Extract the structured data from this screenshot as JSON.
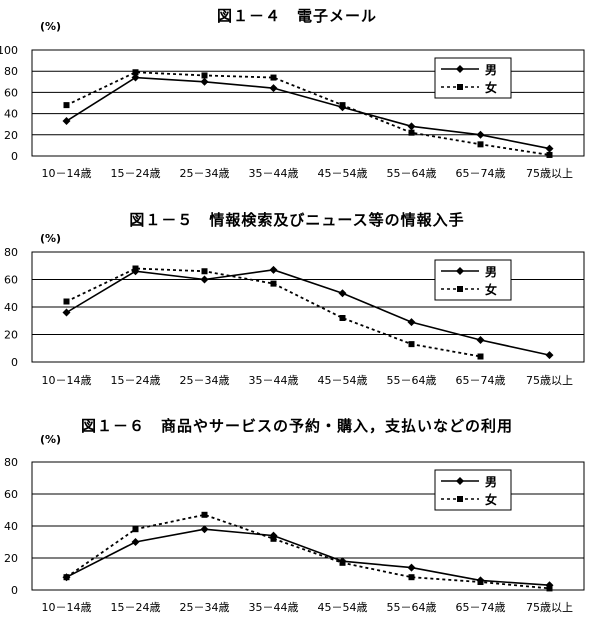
{
  "chart_data": [
    {
      "type": "line",
      "title": "図１－４　電子メール",
      "ylabel": "(%)",
      "ylim": [
        0,
        100
      ],
      "yticks": [
        0,
        20,
        40,
        60,
        80,
        100
      ],
      "categories": [
        "10－14歳",
        "15－24歳",
        "25－34歳",
        "35－44歳",
        "45－54歳",
        "55－64歳",
        "65－74歳",
        "75歳以上"
      ],
      "series": [
        {
          "name": "男",
          "style": "solid",
          "marker": "diamond",
          "values": [
            33,
            74,
            70,
            64,
            46,
            28,
            20,
            7
          ]
        },
        {
          "name": "女",
          "style": "dotted",
          "marker": "square",
          "values": [
            48,
            79,
            76,
            74,
            48,
            22,
            11,
            1
          ]
        }
      ],
      "grid": true,
      "legend": "top-right"
    },
    {
      "type": "line",
      "title": "図１－５　情報検索及びニュース等の情報入手",
      "ylabel": "(%)",
      "ylim": [
        0,
        80
      ],
      "yticks": [
        0,
        20,
        40,
        60,
        80
      ],
      "categories": [
        "10－14歳",
        "15－24歳",
        "25－34歳",
        "35－44歳",
        "45－54歳",
        "55－64歳",
        "65－74歳",
        "75歳以上"
      ],
      "series": [
        {
          "name": "男",
          "style": "solid",
          "marker": "diamond",
          "values": [
            36,
            66,
            60,
            67,
            50,
            29,
            16,
            5
          ]
        },
        {
          "name": "女",
          "style": "dotted",
          "marker": "square",
          "values": [
            44,
            68,
            66,
            57,
            32,
            13,
            4,
            null
          ]
        }
      ],
      "grid": true,
      "legend": "top-right"
    },
    {
      "type": "line",
      "title": "図１－６　商品やサービスの予約・購入，支払いなどの利用",
      "ylabel": "(%)",
      "ylim": [
        0,
        80
      ],
      "yticks": [
        0,
        20,
        40,
        60,
        80
      ],
      "categories": [
        "10－14歳",
        "15－24歳",
        "25－34歳",
        "35－44歳",
        "45－54歳",
        "55－64歳",
        "65－74歳",
        "75歳以上"
      ],
      "series": [
        {
          "name": "男",
          "style": "solid",
          "marker": "diamond",
          "values": [
            8,
            30,
            38,
            34,
            18,
            14,
            6,
            3
          ]
        },
        {
          "name": "女",
          "style": "dotted",
          "marker": "square",
          "values": [
            8,
            38,
            47,
            32,
            17,
            8,
            5,
            1
          ]
        }
      ],
      "grid": true,
      "legend": "top-right"
    }
  ]
}
